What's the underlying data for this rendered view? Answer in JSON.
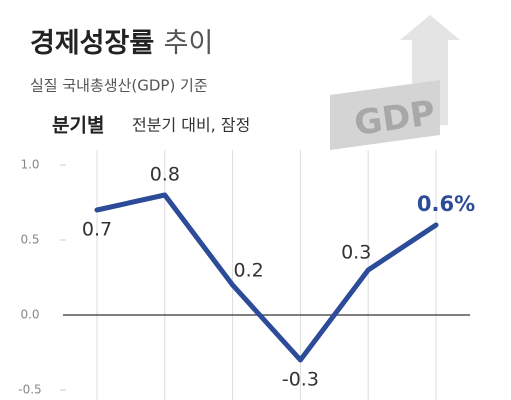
{
  "chart_data": {
    "type": "line",
    "title": "경제성장률",
    "title_light": "추이",
    "subtitle": "실질 국내총생산(GDP) 기준",
    "panel_label": "분기별",
    "panel_note": "전분기 대비, 잠정",
    "graphic_text": "GDP",
    "categories": [
      null,
      null,
      null,
      null,
      null,
      null
    ],
    "series": [
      {
        "color": "#2c4b98",
        "values": [
          0.7,
          0.8,
          0.2,
          -0.3,
          0.3,
          0.6
        ],
        "value_labels": [
          "0.7",
          "0.8",
          "0.2",
          "-0.3",
          "0.3",
          "0.6%"
        ]
      }
    ],
    "ylim": [
      -0.55,
      1.1
    ],
    "yticks": [
      {
        "value": 1,
        "label": "1.0"
      },
      0.5,
      {
        "value": 0,
        "label": "0.0"
      },
      -0.5
    ],
    "grid": true
  }
}
